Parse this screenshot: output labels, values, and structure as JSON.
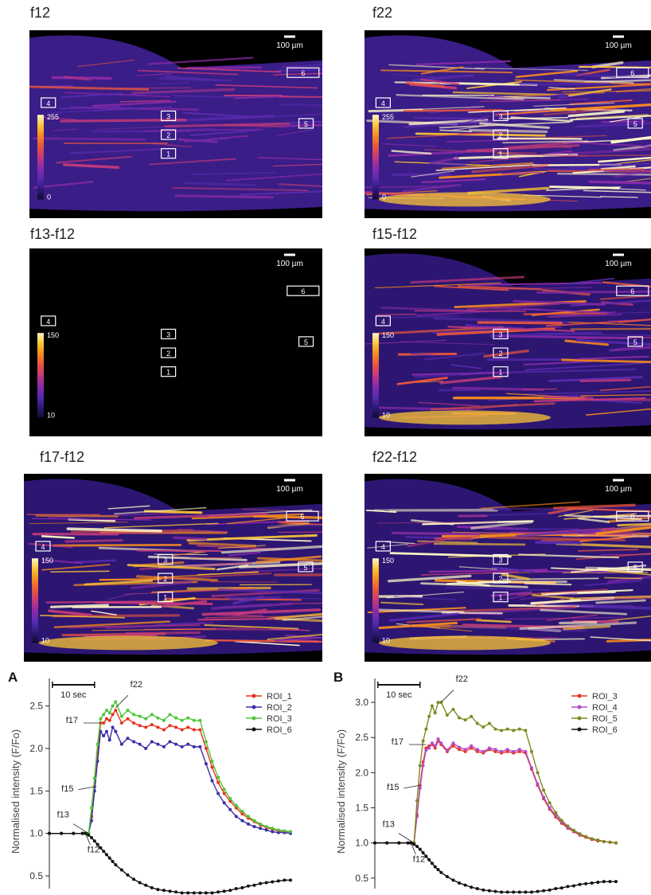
{
  "panels": [
    {
      "title": "f12",
      "scale_min": "0",
      "scale_max": "255",
      "scale_bar": "100 µm",
      "intensity": 0.35
    },
    {
      "title": "f22",
      "scale_min": "0",
      "scale_max": "255",
      "scale_bar": "100 µm",
      "intensity": 1.0
    },
    {
      "title": "f13-f12",
      "scale_min": "10",
      "scale_max": "150",
      "scale_bar": "100 µm",
      "intensity": 0.0
    },
    {
      "title": "f15-f12",
      "scale_min": "10",
      "scale_max": "150",
      "scale_bar": "100 µm",
      "intensity": 0.55
    },
    {
      "title": "f17-f12",
      "scale_min": "10",
      "scale_max": "150",
      "scale_bar": "100 µm",
      "intensity": 0.85
    },
    {
      "title": "f22-f12",
      "scale_min": "10",
      "scale_max": "150",
      "scale_bar": "100 µm",
      "intensity": 0.95
    }
  ],
  "roi_labels": [
    "1",
    "2",
    "3",
    "4",
    "5",
    "6"
  ],
  "colormap": [
    "#120a2e",
    "#2d1b7a",
    "#5a2bb0",
    "#8a2aa8",
    "#c23a7a",
    "#e8553f",
    "#f58a1f",
    "#fbc534",
    "#fff6c8"
  ],
  "chart_data": [
    {
      "type": "line",
      "panel_label": "A",
      "ylabel": "Normalised intensity (F/Fo)",
      "ylim": [
        0.35,
        2.75
      ],
      "yticks": [
        "0.5",
        "1.0",
        "1.5",
        "2.0",
        "2.5"
      ],
      "scale_label": "10 sec",
      "frame_labels": [
        {
          "text": "f12",
          "x": 12,
          "y": 1.0
        },
        {
          "text": "f13",
          "x": 13,
          "y": 1.0
        },
        {
          "text": "f15",
          "x": 15,
          "y": 1.55
        },
        {
          "text": "f17",
          "x": 17,
          "y": 2.3
        },
        {
          "text": "f22",
          "x": 22,
          "y": 2.48
        }
      ],
      "series": [
        {
          "name": "ROI_1",
          "color": "#e8321e",
          "x": [
            0,
            4,
            8,
            11,
            12,
            13,
            14,
            15,
            16,
            17,
            18,
            19,
            20,
            21,
            22,
            24,
            26,
            28,
            30,
            32,
            34,
            36,
            38,
            40,
            42,
            44,
            46,
            48,
            50,
            52,
            54,
            56,
            58,
            60,
            62,
            64,
            66,
            68,
            70,
            72,
            74,
            76,
            78,
            80
          ],
          "y": [
            1.0,
            1.0,
            1.0,
            1.0,
            1.0,
            1.0,
            1.2,
            1.55,
            1.95,
            2.3,
            2.3,
            2.35,
            2.33,
            2.4,
            2.45,
            2.3,
            2.35,
            2.3,
            2.27,
            2.25,
            2.28,
            2.25,
            2.22,
            2.27,
            2.25,
            2.22,
            2.25,
            2.22,
            2.22,
            2.0,
            1.78,
            1.6,
            1.47,
            1.38,
            1.3,
            1.23,
            1.18,
            1.14,
            1.1,
            1.07,
            1.05,
            1.03,
            1.02,
            1.02
          ]
        },
        {
          "name": "ROI_2",
          "color": "#3a2fa8",
          "x": [
            0,
            4,
            8,
            11,
            12,
            13,
            14,
            15,
            16,
            17,
            18,
            19,
            20,
            21,
            22,
            24,
            26,
            28,
            30,
            32,
            34,
            36,
            38,
            40,
            42,
            44,
            46,
            48,
            50,
            52,
            54,
            56,
            58,
            60,
            62,
            64,
            66,
            68,
            70,
            72,
            74,
            76,
            78,
            80
          ],
          "y": [
            1.0,
            1.0,
            1.0,
            1.0,
            1.0,
            1.0,
            1.15,
            1.5,
            1.85,
            2.2,
            2.15,
            2.2,
            2.1,
            2.25,
            2.2,
            2.05,
            2.12,
            2.08,
            2.05,
            2.0,
            2.08,
            2.05,
            2.02,
            2.08,
            2.05,
            2.02,
            2.05,
            2.02,
            2.02,
            1.82,
            1.62,
            1.47,
            1.36,
            1.28,
            1.2,
            1.15,
            1.11,
            1.08,
            1.06,
            1.04,
            1.02,
            1.01,
            1.01,
            1.0
          ]
        },
        {
          "name": "ROI_3",
          "color": "#4fc63a",
          "x": [
            0,
            4,
            8,
            11,
            12,
            13,
            14,
            15,
            16,
            17,
            18,
            19,
            20,
            21,
            22,
            24,
            26,
            28,
            30,
            32,
            34,
            36,
            38,
            40,
            42,
            44,
            46,
            48,
            50,
            52,
            54,
            56,
            58,
            60,
            62,
            64,
            66,
            68,
            70,
            72,
            74,
            76,
            78,
            80
          ],
          "y": [
            1.0,
            1.0,
            1.0,
            1.0,
            1.0,
            1.0,
            1.3,
            1.65,
            2.05,
            2.35,
            2.4,
            2.45,
            2.42,
            2.5,
            2.55,
            2.38,
            2.45,
            2.4,
            2.38,
            2.35,
            2.4,
            2.36,
            2.33,
            2.4,
            2.36,
            2.33,
            2.36,
            2.33,
            2.33,
            2.08,
            1.85,
            1.66,
            1.52,
            1.41,
            1.33,
            1.26,
            1.2,
            1.15,
            1.11,
            1.08,
            1.06,
            1.04,
            1.03,
            1.02
          ]
        },
        {
          "name": "ROI_6",
          "color": "#111111",
          "x": [
            0,
            4,
            8,
            11,
            12,
            13,
            14,
            15,
            16,
            17,
            18,
            19,
            20,
            21,
            22,
            24,
            26,
            28,
            30,
            32,
            34,
            36,
            38,
            40,
            42,
            44,
            46,
            48,
            50,
            52,
            54,
            56,
            58,
            60,
            62,
            64,
            66,
            68,
            70,
            72,
            74,
            76,
            78,
            80
          ],
          "y": [
            1.0,
            1.0,
            1.0,
            1.0,
            1.0,
            0.98,
            0.95,
            0.91,
            0.87,
            0.83,
            0.79,
            0.75,
            0.71,
            0.67,
            0.63,
            0.57,
            0.51,
            0.46,
            0.42,
            0.39,
            0.36,
            0.34,
            0.33,
            0.32,
            0.31,
            0.3,
            0.3,
            0.3,
            0.3,
            0.3,
            0.3,
            0.31,
            0.32,
            0.33,
            0.35,
            0.36,
            0.38,
            0.39,
            0.41,
            0.42,
            0.43,
            0.44,
            0.45,
            0.45
          ]
        }
      ]
    },
    {
      "type": "line",
      "panel_label": "B",
      "ylabel": "Normalised intensity (F/Fo)",
      "ylim": [
        0.35,
        3.25
      ],
      "yticks": [
        "0.5",
        "1.0",
        "1.5",
        "2.0",
        "2.5",
        "3.0"
      ],
      "scale_label": "10 sec",
      "frame_labels": [
        {
          "text": "f12",
          "x": 12,
          "y": 1.0
        },
        {
          "text": "f13",
          "x": 13,
          "y": 1.0
        },
        {
          "text": "f15",
          "x": 15,
          "y": 1.82
        },
        {
          "text": "f17",
          "x": 17,
          "y": 2.4
        },
        {
          "text": "f22",
          "x": 22,
          "y": 3.0
        }
      ],
      "series": [
        {
          "name": "ROI_3",
          "color": "#e8321e",
          "x": [
            0,
            4,
            8,
            11,
            12,
            13,
            14,
            15,
            16,
            17,
            18,
            19,
            20,
            21,
            22,
            24,
            26,
            28,
            30,
            32,
            34,
            36,
            38,
            40,
            42,
            44,
            46,
            48,
            50,
            52,
            54,
            56,
            58,
            60,
            62,
            64,
            66,
            68,
            70,
            72,
            74,
            76,
            78,
            80
          ],
          "y": [
            1.0,
            1.0,
            1.0,
            1.0,
            1.0,
            1.0,
            1.4,
            1.82,
            2.15,
            2.35,
            2.38,
            2.4,
            2.35,
            2.45,
            2.4,
            2.3,
            2.38,
            2.33,
            2.3,
            2.35,
            2.3,
            2.28,
            2.33,
            2.3,
            2.28,
            2.3,
            2.28,
            2.3,
            2.28,
            2.05,
            1.82,
            1.63,
            1.48,
            1.37,
            1.28,
            1.21,
            1.16,
            1.11,
            1.08,
            1.05,
            1.03,
            1.02,
            1.01,
            1.0
          ]
        },
        {
          "name": "ROI_4",
          "color": "#b24ac8",
          "x": [
            0,
            4,
            8,
            11,
            12,
            13,
            14,
            15,
            16,
            17,
            18,
            19,
            20,
            21,
            22,
            24,
            26,
            28,
            30,
            32,
            34,
            36,
            38,
            40,
            42,
            44,
            46,
            48,
            50,
            52,
            54,
            56,
            58,
            60,
            62,
            64,
            66,
            68,
            70,
            72,
            74,
            76,
            78,
            80
          ],
          "y": [
            1.0,
            1.0,
            1.0,
            1.0,
            1.0,
            1.0,
            1.38,
            1.78,
            2.1,
            2.32,
            2.35,
            2.42,
            2.38,
            2.48,
            2.42,
            2.32,
            2.42,
            2.36,
            2.33,
            2.38,
            2.33,
            2.3,
            2.35,
            2.33,
            2.3,
            2.33,
            2.3,
            2.33,
            2.3,
            2.07,
            1.84,
            1.65,
            1.5,
            1.39,
            1.3,
            1.22,
            1.17,
            1.12,
            1.09,
            1.06,
            1.04,
            1.02,
            1.01,
            1.0
          ]
        },
        {
          "name": "ROI_5",
          "color": "#7f8a1e",
          "x": [
            0,
            4,
            8,
            11,
            12,
            13,
            14,
            15,
            16,
            17,
            18,
            19,
            20,
            21,
            22,
            24,
            26,
            28,
            30,
            32,
            34,
            36,
            38,
            40,
            42,
            44,
            46,
            48,
            50,
            52,
            54,
            56,
            58,
            60,
            62,
            64,
            66,
            68,
            70,
            72,
            74,
            76,
            78,
            80
          ],
          "y": [
            1.0,
            1.0,
            1.0,
            1.0,
            1.0,
            1.0,
            1.6,
            2.1,
            2.45,
            2.62,
            2.8,
            2.95,
            2.85,
            3.0,
            3.0,
            2.82,
            2.9,
            2.78,
            2.75,
            2.8,
            2.7,
            2.65,
            2.7,
            2.62,
            2.6,
            2.62,
            2.6,
            2.62,
            2.6,
            2.3,
            2.0,
            1.75,
            1.57,
            1.43,
            1.32,
            1.24,
            1.18,
            1.13,
            1.09,
            1.06,
            1.04,
            1.02,
            1.01,
            1.0
          ]
        },
        {
          "name": "ROI_6",
          "color": "#111111",
          "x": [
            0,
            4,
            8,
            11,
            12,
            13,
            14,
            15,
            16,
            17,
            18,
            19,
            20,
            21,
            22,
            24,
            26,
            28,
            30,
            32,
            34,
            36,
            38,
            40,
            42,
            44,
            46,
            48,
            50,
            52,
            54,
            56,
            58,
            60,
            62,
            64,
            66,
            68,
            70,
            72,
            74,
            76,
            78,
            80
          ],
          "y": [
            1.0,
            1.0,
            1.0,
            1.0,
            1.0,
            0.98,
            0.95,
            0.91,
            0.86,
            0.81,
            0.76,
            0.71,
            0.66,
            0.62,
            0.58,
            0.52,
            0.47,
            0.43,
            0.4,
            0.37,
            0.35,
            0.33,
            0.32,
            0.31,
            0.3,
            0.3,
            0.3,
            0.3,
            0.3,
            0.3,
            0.31,
            0.32,
            0.33,
            0.35,
            0.36,
            0.38,
            0.39,
            0.41,
            0.42,
            0.43,
            0.44,
            0.45,
            0.45,
            0.45
          ]
        }
      ]
    }
  ]
}
